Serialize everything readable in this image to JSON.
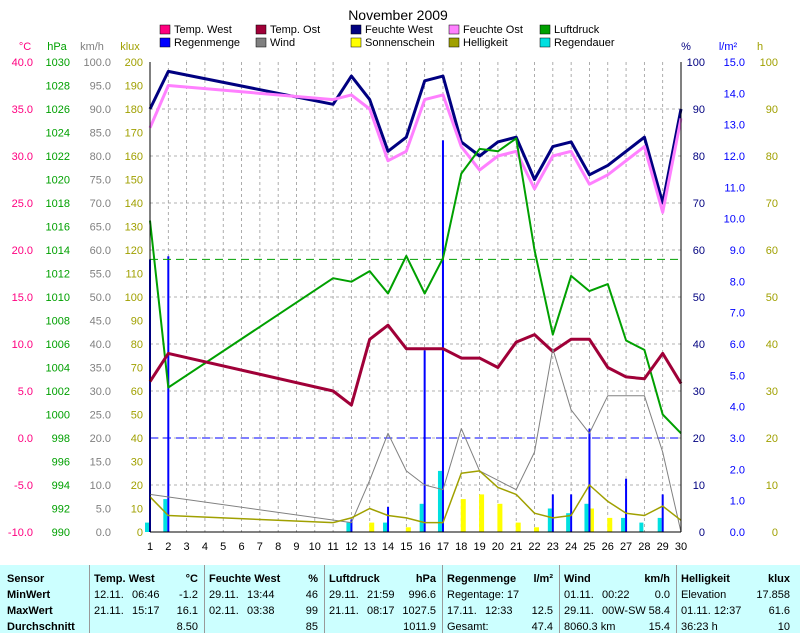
{
  "title": "November 2009",
  "legend": [
    {
      "label": "Temp. West",
      "color": "#ff0080"
    },
    {
      "label": "Temp. Ost",
      "color": "#a00038"
    },
    {
      "label": "Feuchte West",
      "color": "#000080"
    },
    {
      "label": "Feuchte Ost",
      "color": "#ff80ff"
    },
    {
      "label": "Luftdruck",
      "color": "#00a000"
    },
    {
      "label": "Regenmenge",
      "color": "#0000ff"
    },
    {
      "label": "Wind",
      "color": "#808080"
    },
    {
      "label": "Sonnenschein",
      "color": "#ffff00"
    },
    {
      "label": "Helligkeit",
      "color": "#a0a000"
    },
    {
      "label": "Regendauer",
      "color": "#00e0e0"
    }
  ],
  "axes": {
    "temp": {
      "unit": "°C",
      "color": "#ff0080",
      "ticks": [
        "40.0",
        "35.0",
        "30.0",
        "25.0",
        "20.0",
        "15.0",
        "10.0",
        "5.0",
        "0.0",
        "-5.0",
        "-10.0"
      ]
    },
    "press": {
      "unit": "hPa",
      "color": "#00a000",
      "ticks": [
        "1030",
        "1028",
        "1026",
        "1024",
        "1022",
        "1020",
        "1018",
        "1016",
        "1014",
        "1012",
        "1010",
        "1008",
        "1006",
        "1004",
        "1002",
        "1000",
        "998",
        "996",
        "994",
        "992",
        "990"
      ]
    },
    "wind": {
      "unit": "km/h",
      "color": "#808080",
      "ticks": [
        "100.0",
        "95.0",
        "90.0",
        "85.0",
        "80.0",
        "75.0",
        "70.0",
        "65.0",
        "60.0",
        "55.0",
        "50.0",
        "45.0",
        "40.0",
        "35.0",
        "30.0",
        "25.0",
        "20.0",
        "15.0",
        "10.0",
        "5.0",
        "0.0"
      ]
    },
    "klux": {
      "unit": "klux",
      "color": "#a0a000",
      "ticks": [
        "200",
        "190",
        "180",
        "170",
        "160",
        "150",
        "140",
        "130",
        "120",
        "110",
        "100",
        "90",
        "80",
        "70",
        "60",
        "50",
        "40",
        "30",
        "20",
        "10",
        "0"
      ]
    },
    "hum": {
      "unit": "%",
      "color": "#000080",
      "ticks": [
        "100",
        "90",
        "80",
        "70",
        "60",
        "50",
        "40",
        "30",
        "20",
        "10",
        "0"
      ]
    },
    "rain": {
      "unit": "l/m²",
      "color": "#0000ff",
      "ticks": [
        "15.0",
        "14.0",
        "13.0",
        "12.0",
        "11.0",
        "10.0",
        "9.0",
        "8.0",
        "7.0",
        "6.0",
        "5.0",
        "4.0",
        "3.0",
        "2.0",
        "1.0",
        "0.0"
      ]
    },
    "hours": {
      "unit": "h",
      "color": "#a0a000",
      "ticks": [
        "100",
        "90",
        "80",
        "70",
        "60",
        "50",
        "40",
        "30",
        "20",
        "10",
        "0"
      ]
    },
    "x": {
      "ticks": [
        "1",
        "2",
        "3",
        "4",
        "5",
        "6",
        "7",
        "8",
        "9",
        "10",
        "11",
        "12",
        "13",
        "14",
        "15",
        "16",
        "17",
        "18",
        "19",
        "20",
        "21",
        "22",
        "23",
        "24",
        "25",
        "26",
        "27",
        "28",
        "29",
        "30"
      ]
    }
  },
  "chart_data": {
    "type": "line",
    "title": "November 2009",
    "x": [
      1,
      2,
      3,
      4,
      5,
      6,
      7,
      8,
      9,
      10,
      11,
      12,
      13,
      14,
      15,
      16,
      17,
      18,
      19,
      20,
      21,
      22,
      23,
      24,
      25,
      26,
      27,
      28,
      29,
      30
    ],
    "series": [
      {
        "name": "Feuchte West",
        "axis": "hum",
        "color": "#000080",
        "width": 3,
        "values": [
          90,
          98,
          null,
          null,
          null,
          null,
          null,
          null,
          null,
          null,
          91,
          97,
          92,
          81,
          84,
          96,
          97,
          83,
          80,
          83,
          84,
          75,
          82,
          83,
          76,
          78,
          81,
          84,
          70,
          90
        ]
      },
      {
        "name": "Feuchte Ost",
        "axis": "hum",
        "color": "#ff80ff",
        "width": 3,
        "values": [
          86,
          95,
          null,
          null,
          null,
          null,
          null,
          null,
          null,
          null,
          92,
          93,
          90,
          79,
          81,
          92,
          93,
          82,
          77,
          80,
          81,
          73,
          80,
          81,
          74,
          76,
          79,
          82,
          68,
          88
        ]
      },
      {
        "name": "Luftdruck",
        "axis": "press",
        "color": "#00a000",
        "width": 2,
        "values": [
          1016.5,
          1002.3,
          null,
          null,
          null,
          null,
          null,
          null,
          null,
          null,
          1011.6,
          1011.3,
          1012.2,
          1010.3,
          1013.5,
          1010.3,
          1013.3,
          1020.5,
          1022.6,
          1022.4,
          1023.5,
          1014,
          1006.8,
          1011.8,
          1010.5,
          1011.1,
          1006.3,
          1005.5,
          1000,
          998.4
        ]
      },
      {
        "name": "Temp. Ost",
        "axis": "temp",
        "color": "#a00038",
        "width": 3,
        "values": [
          6.0,
          9.0,
          null,
          null,
          null,
          null,
          null,
          null,
          null,
          null,
          5.0,
          3.5,
          10.5,
          12.0,
          9.5,
          9.5,
          9.5,
          8.5,
          8.5,
          7.5,
          10.2,
          11.0,
          9.2,
          10.5,
          10.5,
          7.5,
          6.5,
          6.3,
          9.0,
          5.8
        ]
      },
      {
        "name": "Wind",
        "axis": "wind",
        "color": "#808080",
        "width": 1,
        "values": [
          8,
          null,
          null,
          null,
          null,
          null,
          null,
          null,
          null,
          null,
          null,
          2,
          11,
          21,
          13,
          10,
          9,
          22,
          13,
          11,
          9,
          17,
          39,
          26,
          21,
          29,
          29,
          29,
          17,
          0
        ]
      },
      {
        "name": "Helligkeit",
        "axis": "klux",
        "color": "#a0a000",
        "width": 1.5,
        "values": [
          15,
          7,
          null,
          null,
          null,
          null,
          null,
          null,
          null,
          null,
          4,
          6,
          10,
          7,
          6,
          4,
          4,
          25,
          26,
          19,
          16,
          8,
          6,
          7,
          20,
          13,
          8,
          7,
          11,
          5
        ]
      }
    ],
    "bars": [
      {
        "name": "Regenmenge",
        "axis": "rain",
        "color": "#0000ff",
        "values": [
          8.7,
          8.8,
          0,
          0,
          0,
          0,
          0,
          0,
          0,
          0,
          0,
          0.4,
          0,
          0.8,
          0,
          5.8,
          12.5,
          0,
          0,
          0,
          0,
          0,
          1.2,
          1.2,
          3.3,
          0,
          1.7,
          0,
          1.2,
          0
        ]
      },
      {
        "name": "Regendauer",
        "axis": "hours",
        "color": "#00e0e0",
        "values": [
          2,
          7,
          0,
          0,
          0,
          0,
          0,
          0,
          0,
          0,
          0,
          2,
          0,
          2,
          0,
          6,
          13,
          0,
          0,
          0,
          0,
          0,
          5,
          4,
          6,
          0,
          3,
          2,
          3,
          0
        ]
      },
      {
        "name": "Sonnenschein",
        "axis": "hours",
        "color": "#ffff00",
        "values": [
          0,
          0,
          0,
          0,
          0,
          0,
          0,
          0,
          0,
          0,
          0,
          0,
          2,
          0,
          1,
          0,
          0,
          7,
          8,
          6,
          2,
          1,
          0,
          0,
          5,
          3,
          0,
          0,
          0,
          0
        ]
      }
    ],
    "ref_lines": [
      {
        "name": "Luftdruck",
        "axis": "press",
        "value": 1013.2,
        "color": "#00a000",
        "style": "dashed"
      },
      {
        "name": "Regenmenge",
        "axis": "rain",
        "value": 3.0,
        "color": "#0000ff",
        "style": "dashed"
      }
    ],
    "grid": true
  },
  "stats": {
    "headers": {
      "sensor": "Sensor",
      "temp": {
        "label": "Temp. West",
        "unit": "°C"
      },
      "hum": {
        "label": "Feuchte West",
        "unit": "%"
      },
      "press": {
        "label": "Luftdruck",
        "unit": "hPa"
      },
      "rain": {
        "label": "Regenmenge",
        "unit": "l/m²"
      },
      "wind": {
        "label": "Wind",
        "unit": "km/h"
      },
      "light": {
        "label": "Helligkeit",
        "unit": "klux"
      }
    },
    "row_labels": [
      "MinWert",
      "MaxWert",
      "Durchschnitt"
    ],
    "temp": [
      {
        "d": "12.11.",
        "t": "06:46",
        "v": "-1.2"
      },
      {
        "d": "21.11.",
        "t": "15:17",
        "v": "16.1"
      },
      {
        "d": "",
        "t": "",
        "v": "8.50"
      }
    ],
    "hum": [
      {
        "d": "29.11.",
        "t": "13:44",
        "v": "46"
      },
      {
        "d": "02.11.",
        "t": "03:38",
        "v": "99"
      },
      {
        "d": "",
        "t": "",
        "v": "85"
      }
    ],
    "press": [
      {
        "d": "29.11.",
        "t": "21:59",
        "v": "996.6"
      },
      {
        "d": "21.11.",
        "t": "08:17",
        "v": "1027.5"
      },
      {
        "d": "",
        "t": "",
        "v": "1011.9"
      }
    ],
    "rain": [
      {
        "a": "Regentage: 17",
        "b": "",
        "v": ""
      },
      {
        "a": "17.11.",
        "b": "12:33",
        "v": "12.5"
      },
      {
        "a": "Gesamt:",
        "b": "",
        "v": "47.4"
      }
    ],
    "wind": [
      {
        "a": "01.11.",
        "b": "00:22",
        "v": "0.0"
      },
      {
        "a": "29.11.",
        "b": "00W-SW",
        "v": "58.4"
      },
      {
        "a": "8060.3 km",
        "b": "",
        "v": "15.4"
      }
    ],
    "light": [
      {
        "a": "Elevation",
        "v": "17.858"
      },
      {
        "a": "01.11.  12:37",
        "v": "61.6"
      },
      {
        "a": "36:23 h",
        "v": "10"
      }
    ]
  }
}
